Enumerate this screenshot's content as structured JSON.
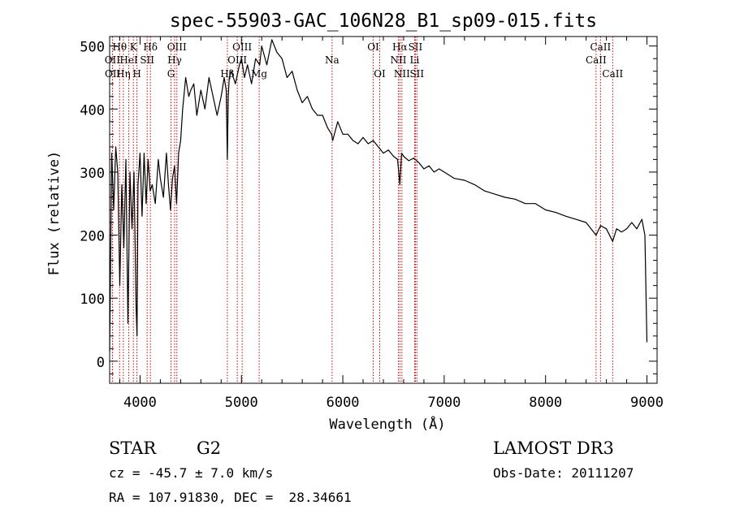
{
  "chart_data": {
    "type": "line",
    "title": "spec-55903-GAC_106N28_B1_sp09-015.fits",
    "xlabel": "Wavelength (Å)",
    "ylabel": "Flux (relative)",
    "xlim": [
      3700,
      9100
    ],
    "ylim": [
      -35,
      515
    ],
    "xticks": [
      4000,
      5000,
      6000,
      7000,
      8000,
      9000
    ],
    "yticks": [
      0,
      100,
      200,
      300,
      400,
      500
    ],
    "series": [
      {
        "name": "spectrum",
        "x": [
          3700,
          3720,
          3740,
          3760,
          3780,
          3800,
          3820,
          3840,
          3860,
          3880,
          3900,
          3920,
          3940,
          3960,
          3970,
          3980,
          4000,
          4020,
          4040,
          4060,
          4080,
          4100,
          4120,
          4150,
          4180,
          4200,
          4230,
          4260,
          4280,
          4300,
          4320,
          4340,
          4360,
          4380,
          4400,
          4420,
          4450,
          4480,
          4500,
          4530,
          4560,
          4600,
          4640,
          4680,
          4720,
          4760,
          4800,
          4830,
          4850,
          4861,
          4870,
          4880,
          4900,
          4940,
          4980,
          5000,
          5030,
          5060,
          5100,
          5140,
          5180,
          5200,
          5250,
          5300,
          5350,
          5400,
          5450,
          5500,
          5550,
          5600,
          5650,
          5700,
          5750,
          5800,
          5850,
          5890,
          5900,
          5950,
          6000,
          6050,
          6100,
          6150,
          6200,
          6250,
          6300,
          6350,
          6400,
          6450,
          6500,
          6540,
          6563,
          6580,
          6600,
          6650,
          6700,
          6750,
          6800,
          6850,
          6900,
          6950,
          7000,
          7100,
          7200,
          7300,
          7400,
          7500,
          7600,
          7700,
          7800,
          7900,
          8000,
          8100,
          8200,
          8300,
          8400,
          8498,
          8542,
          8600,
          8662,
          8700,
          8750,
          8800,
          8850,
          8900,
          8950,
          8980,
          9000
        ],
        "y": [
          15,
          330,
          240,
          340,
          300,
          120,
          280,
          180,
          320,
          60,
          300,
          210,
          300,
          90,
          40,
          280,
          330,
          230,
          330,
          250,
          320,
          270,
          280,
          250,
          320,
          290,
          260,
          330,
          280,
          240,
          290,
          310,
          250,
          330,
          350,
          400,
          450,
          420,
          430,
          440,
          390,
          430,
          400,
          450,
          420,
          390,
          420,
          450,
          430,
          320,
          420,
          450,
          460,
          440,
          470,
          480,
          450,
          470,
          440,
          480,
          470,
          500,
          470,
          510,
          490,
          480,
          450,
          460,
          430,
          410,
          420,
          400,
          390,
          390,
          370,
          360,
          350,
          380,
          360,
          360,
          350,
          345,
          355,
          345,
          350,
          340,
          330,
          335,
          325,
          320,
          280,
          330,
          325,
          318,
          322,
          315,
          305,
          310,
          300,
          305,
          300,
          290,
          287,
          280,
          270,
          265,
          260,
          257,
          250,
          250,
          240,
          236,
          230,
          225,
          220,
          200,
          215,
          210,
          190,
          210,
          205,
          210,
          220,
          210,
          225,
          200,
          30
        ]
      }
    ],
    "line_markers": [
      {
        "label": "Hθ",
        "x": 3798,
        "row": 1
      },
      {
        "label": "OII",
        "x": 3727,
        "row": 2
      },
      {
        "label": "OII",
        "x": 3729,
        "row": 3
      },
      {
        "label": "Hη",
        "x": 3835,
        "row": 3
      },
      {
        "label": "HeI",
        "x": 3889,
        "row": 2
      },
      {
        "label": "K",
        "x": 3934,
        "row": 1
      },
      {
        "label": "H",
        "x": 3969,
        "row": 3
      },
      {
        "label": "Hδ",
        "x": 4102,
        "row": 1
      },
      {
        "label": "SII",
        "x": 4070,
        "row": 2
      },
      {
        "label": "OIII",
        "x": 4363,
        "row": 1
      },
      {
        "label": "Hγ",
        "x": 4341,
        "row": 2
      },
      {
        "label": "G",
        "x": 4305,
        "row": 3
      },
      {
        "label": "Hβ",
        "x": 4861,
        "row": 3
      },
      {
        "label": "OIII",
        "x": 5007,
        "row": 1
      },
      {
        "label": "OIII",
        "x": 4959,
        "row": 2
      },
      {
        "label": "Mg",
        "x": 5175,
        "row": 3
      },
      {
        "label": "Na",
        "x": 5894,
        "row": 2
      },
      {
        "label": "OI",
        "x": 6300,
        "row": 1
      },
      {
        "label": "OI",
        "x": 6364,
        "row": 3
      },
      {
        "label": "Hα",
        "x": 6563,
        "row": 1
      },
      {
        "label": "NII",
        "x": 6548,
        "row": 2
      },
      {
        "label": "NII",
        "x": 6583,
        "row": 3
      },
      {
        "label": "SII",
        "x": 6716,
        "row": 1
      },
      {
        "label": "Li",
        "x": 6708,
        "row": 2
      },
      {
        "label": "SII",
        "x": 6731,
        "row": 3
      },
      {
        "label": "CaII",
        "x": 8542,
        "row": 1
      },
      {
        "label": "CaII",
        "x": 8498,
        "row": 2
      },
      {
        "label": "CaII",
        "x": 8662,
        "row": 3
      }
    ],
    "colors": {
      "spectrum": "#000000",
      "markers": "#cc0000",
      "axes": "#000000"
    }
  },
  "info": {
    "object_type": "STAR",
    "subclass": "G2",
    "survey": "LAMOST DR3",
    "cz": "cz = -45.7 ± 7.0 km/s",
    "obs_date": "Obs-Date: 20111207",
    "coords": "RA = 107.91830, DEC =  28.34661"
  }
}
